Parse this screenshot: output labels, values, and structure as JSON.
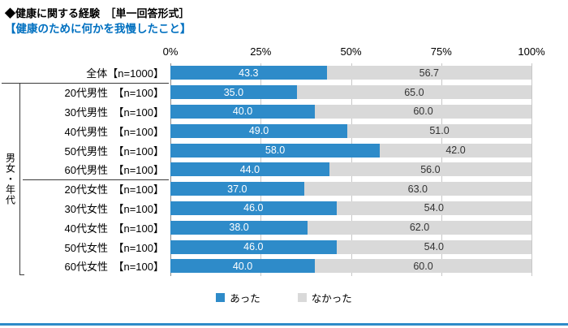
{
  "header": {
    "title": "◆健康に関する経験　［単一回答形式］",
    "subtitle": "【健康のために何かを我慢したこと】"
  },
  "axis_group_label": "男女・年代",
  "colors": {
    "accent_blue": "#2E8BC9",
    "bar_gray": "#D9D9D9",
    "subtitle_blue": "#0070C0"
  },
  "chart_data": {
    "type": "bar",
    "orientation": "horizontal",
    "stacked": true,
    "xlim": [
      0,
      100
    ],
    "x_ticks": [
      "0%",
      "25%",
      "50%",
      "75%",
      "100%"
    ],
    "grid": true,
    "legend_position": "bottom",
    "categories": [
      "全体【n=1000】",
      "20代男性　【n=100】",
      "30代男性　【n=100】",
      "40代男性　【n=100】",
      "50代男性　【n=100】",
      "60代男性　【n=100】",
      "20代女性　【n=100】",
      "30代女性　【n=100】",
      "40代女性　【n=100】",
      "50代女性　【n=100】",
      "60代女性　【n=100】"
    ],
    "series": [
      {
        "name": "あった",
        "color": "#2E8BC9",
        "text_color": "#FFFFFF",
        "values": [
          43.3,
          35.0,
          40.0,
          49.0,
          58.0,
          44.0,
          37.0,
          46.0,
          38.0,
          46.0,
          40.0
        ]
      },
      {
        "name": "なかった",
        "color": "#D9D9D9",
        "text_color": "#333333",
        "values": [
          56.7,
          65.0,
          60.0,
          51.0,
          42.0,
          56.0,
          63.0,
          54.0,
          62.0,
          54.0,
          60.0
        ]
      }
    ],
    "legend": [
      {
        "label": "あった",
        "color": "#2E8BC9"
      },
      {
        "label": "なかった",
        "color": "#D9D9D9"
      }
    ]
  }
}
